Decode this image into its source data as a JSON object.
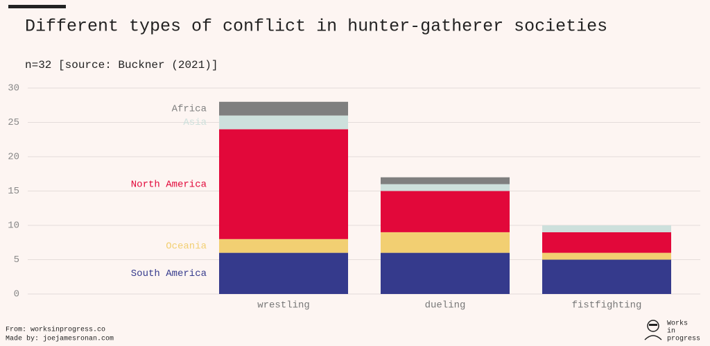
{
  "chart_data": {
    "type": "stacked_bar",
    "title": "Different types of conflict in hunter-gatherer societies",
    "subtitle": "n=32 [source: Buckner (2021)]",
    "categories": [
      "wrestling",
      "dueling",
      "fistfighting"
    ],
    "series": [
      {
        "name": "South America",
        "color": "#353a8c",
        "values": [
          6,
          6,
          5
        ]
      },
      {
        "name": "Oceania",
        "color": "#f2cf72",
        "values": [
          2,
          3,
          1
        ]
      },
      {
        "name": "North America",
        "color": "#e2083a",
        "values": [
          16,
          6,
          3
        ]
      },
      {
        "name": "Asia",
        "color": "#cde0dc",
        "values": [
          2,
          1,
          1
        ]
      },
      {
        "name": "Africa",
        "color": "#7f7f7f",
        "values": [
          2,
          1,
          0
        ]
      }
    ],
    "ylim": [
      0,
      30
    ],
    "yticks": [
      0,
      5,
      10,
      15,
      20,
      25,
      30
    ],
    "grid": true
  },
  "footer": {
    "source": "From: worksinprogress.co",
    "made_by": "Made by: joejamesronan.com",
    "logo": [
      "Works",
      "in",
      "progress"
    ]
  }
}
